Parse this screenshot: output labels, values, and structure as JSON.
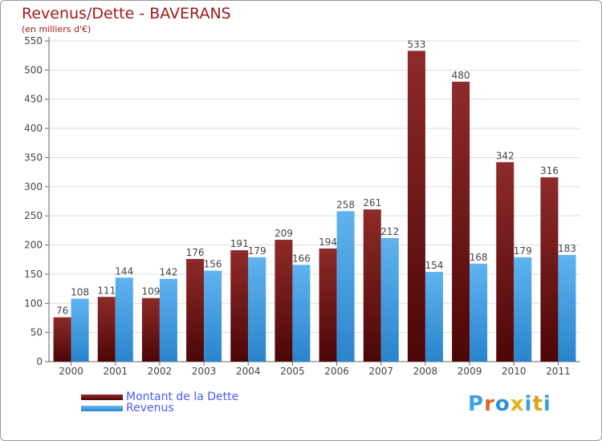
{
  "header": {
    "title": "Revenus/Dette - BAVERANS",
    "subtitle": "(en milliers d'€)"
  },
  "legend": {
    "items": [
      {
        "label": "Montant de la Dette",
        "color": "#7a1c1c"
      },
      {
        "label": "Revenus",
        "color": "#3f9fe8"
      }
    ]
  },
  "logo": {
    "text": "Proxiti",
    "colors": [
      "#3aa0e0",
      "#e0652a",
      "#2f8fd6",
      "#e8b21c",
      "#3aa0e0",
      "#d8a31a",
      "#3aa0e0"
    ]
  },
  "chart_data": {
    "type": "bar",
    "categories": [
      "2000",
      "2001",
      "2002",
      "2003",
      "2004",
      "2005",
      "2006",
      "2007",
      "2008",
      "2009",
      "2010",
      "2011"
    ],
    "series": [
      {
        "name": "Montant de la Dette",
        "color": "#7a1c1c",
        "values": [
          76,
          111,
          109,
          176,
          191,
          209,
          194,
          261,
          533,
          480,
          342,
          316
        ]
      },
      {
        "name": "Revenus",
        "color": "#3f9fe8",
        "values": [
          108,
          144,
          142,
          156,
          179,
          166,
          258,
          212,
          154,
          168,
          179,
          183
        ]
      }
    ],
    "ylim": [
      0,
      550
    ],
    "yticks": [
      0,
      50,
      100,
      150,
      200,
      250,
      300,
      350,
      400,
      450,
      500,
      550
    ],
    "grid": true
  }
}
